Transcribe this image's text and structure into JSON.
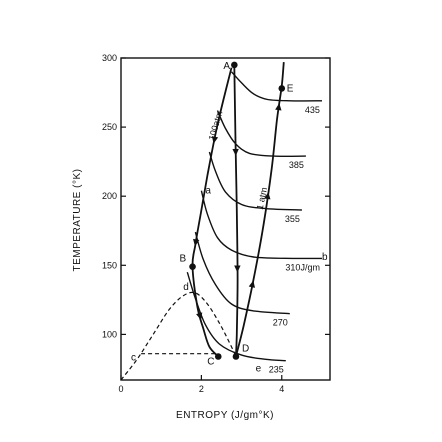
{
  "chart_data": {
    "type": "diagram",
    "xlabel": "ENTROPY  (J/gm°K)",
    "ylabel": "TEMPERATURE  (°K)",
    "xlim": [
      0,
      5.2
    ],
    "ylim": [
      67,
      300
    ],
    "x_ticks": [
      "0",
      "2",
      "4"
    ],
    "x_tick_values": [
      0,
      2,
      4
    ],
    "y_ticks": [
      "100",
      "150",
      "200",
      "250",
      "300"
    ],
    "y_tick_values": [
      100,
      150,
      200,
      250,
      300
    ],
    "points": [
      {
        "label": "A",
        "s": 2.82,
        "t": 295
      },
      {
        "label": "E",
        "s": 4.0,
        "t": 278
      },
      {
        "label": "B",
        "s": 1.78,
        "t": 149
      },
      {
        "label": "C",
        "s": 2.42,
        "t": 84
      },
      {
        "label": "D",
        "s": 2.86,
        "t": 84
      }
    ],
    "letters": [
      {
        "label": "a",
        "s": 2.1,
        "t": 202
      },
      {
        "label": "b",
        "s": 5.0,
        "t": 154
      },
      {
        "label": "c",
        "s": 0.25,
        "t": 81
      },
      {
        "label": "d",
        "s": 1.55,
        "t": 132
      },
      {
        "label": "e",
        "s": 3.35,
        "t": 73
      }
    ],
    "isenthalps": [
      {
        "label": "435",
        "points": [
          [
            2.75,
            290
          ],
          [
            3.0,
            282
          ],
          [
            3.3,
            274
          ],
          [
            3.65,
            270
          ],
          [
            4.2,
            269
          ],
          [
            5.0,
            269
          ]
        ]
      },
      {
        "label": "385",
        "points": [
          [
            2.4,
            262
          ],
          [
            2.6,
            249
          ],
          [
            2.85,
            238
          ],
          [
            3.2,
            231
          ],
          [
            3.8,
            229
          ],
          [
            4.6,
            229
          ]
        ]
      },
      {
        "label": "355",
        "points": [
          [
            2.2,
            232
          ],
          [
            2.35,
            218
          ],
          [
            2.6,
            203
          ],
          [
            3.0,
            194
          ],
          [
            3.6,
            191
          ],
          [
            4.5,
            190
          ]
        ]
      },
      {
        "label": "310J/gm",
        "points": [
          [
            2.0,
            204
          ],
          [
            2.15,
            187
          ],
          [
            2.4,
            170
          ],
          [
            2.75,
            161
          ],
          [
            3.3,
            156
          ],
          [
            4.3,
            155
          ],
          [
            5.0,
            155
          ]
        ]
      },
      {
        "label": "270",
        "points": [
          [
            1.85,
            174
          ],
          [
            2.05,
            154
          ],
          [
            2.35,
            136
          ],
          [
            2.75,
            122
          ],
          [
            3.3,
            117
          ],
          [
            4.2,
            115
          ]
        ]
      },
      {
        "label": "235",
        "points": [
          [
            1.65,
            145
          ],
          [
            1.85,
            126
          ],
          [
            2.1,
            107
          ],
          [
            2.45,
            93
          ],
          [
            3.0,
            85
          ],
          [
            3.6,
            82
          ],
          [
            4.1,
            81
          ]
        ]
      }
    ],
    "isobars": [
      {
        "label": "100atm",
        "points": [
          [
            2.75,
            293
          ],
          [
            2.55,
            270
          ],
          [
            2.35,
            245
          ],
          [
            2.15,
            215
          ],
          [
            2.0,
            190
          ],
          [
            1.85,
            165
          ],
          [
            1.78,
            149
          ],
          [
            1.9,
            120
          ],
          [
            2.05,
            104
          ],
          [
            2.2,
            91
          ],
          [
            2.42,
            84
          ]
        ]
      },
      {
        "label": "1 atm",
        "points": [
          [
            2.86,
            84
          ],
          [
            3.05,
            106
          ],
          [
            3.3,
            140
          ],
          [
            3.55,
            180
          ],
          [
            3.75,
            220
          ],
          [
            3.88,
            255
          ],
          [
            4.0,
            280
          ],
          [
            4.05,
            297
          ]
        ]
      },
      {
        "label": "A-D",
        "points": [
          [
            2.82,
            295
          ],
          [
            2.85,
            240
          ],
          [
            2.88,
            190
          ],
          [
            2.9,
            140
          ],
          [
            2.88,
            100
          ],
          [
            2.86,
            84
          ]
        ]
      }
    ],
    "dashed": [
      {
        "name": "saturation-dome",
        "points": [
          [
            0,
            67
          ],
          [
            0.4,
            82
          ],
          [
            0.8,
            100
          ],
          [
            1.2,
            118
          ],
          [
            1.55,
            128
          ],
          [
            1.85,
            130
          ],
          [
            2.15,
            122
          ],
          [
            2.45,
            108
          ],
          [
            2.7,
            94
          ],
          [
            2.86,
            84
          ]
        ]
      },
      {
        "name": "c-line",
        "points": [
          [
            0.5,
            86
          ],
          [
            2.42,
            86
          ]
        ]
      }
    ],
    "grid": false
  }
}
